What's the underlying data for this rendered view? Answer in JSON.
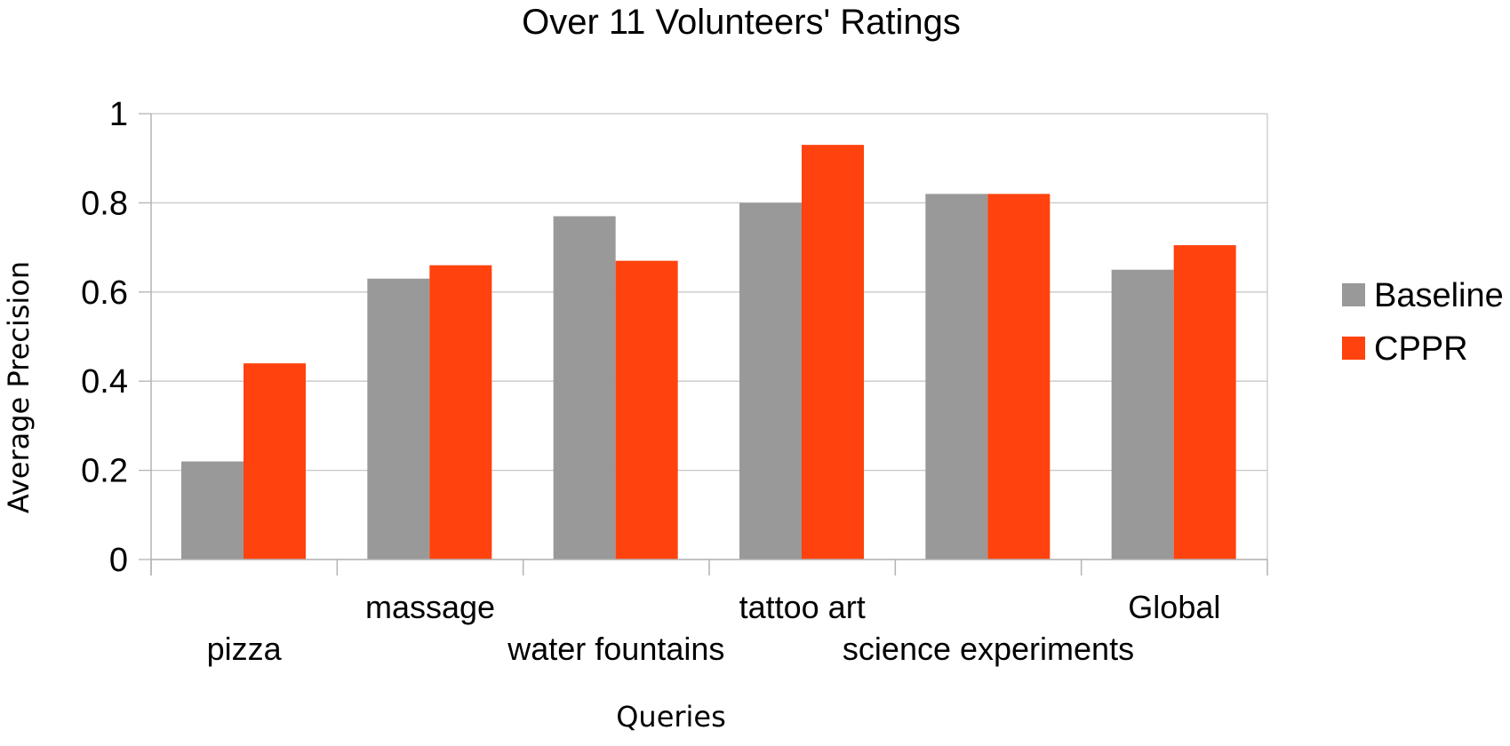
{
  "chart_data": {
    "type": "bar",
    "title": "Over 11 Volunteers' Ratings",
    "xlabel": "Queries",
    "ylabel": "Average Precision",
    "categories": [
      "pizza",
      "massage",
      "water fountains",
      "tattoo art",
      "science experiments",
      "Global"
    ],
    "series": [
      {
        "name": "Baseline",
        "color": "#999999",
        "values": [
          0.22,
          0.63,
          0.77,
          0.8,
          0.82,
          0.65
        ]
      },
      {
        "name": "CPPR",
        "color": "#ff420e",
        "values": [
          0.44,
          0.66,
          0.67,
          0.93,
          0.82,
          0.705
        ]
      }
    ],
    "ylim": [
      0,
      1
    ],
    "yticks": [
      "0",
      "0.2",
      "0.4",
      "0.6",
      "0.8",
      "1"
    ],
    "grid": true,
    "legend": "right"
  }
}
